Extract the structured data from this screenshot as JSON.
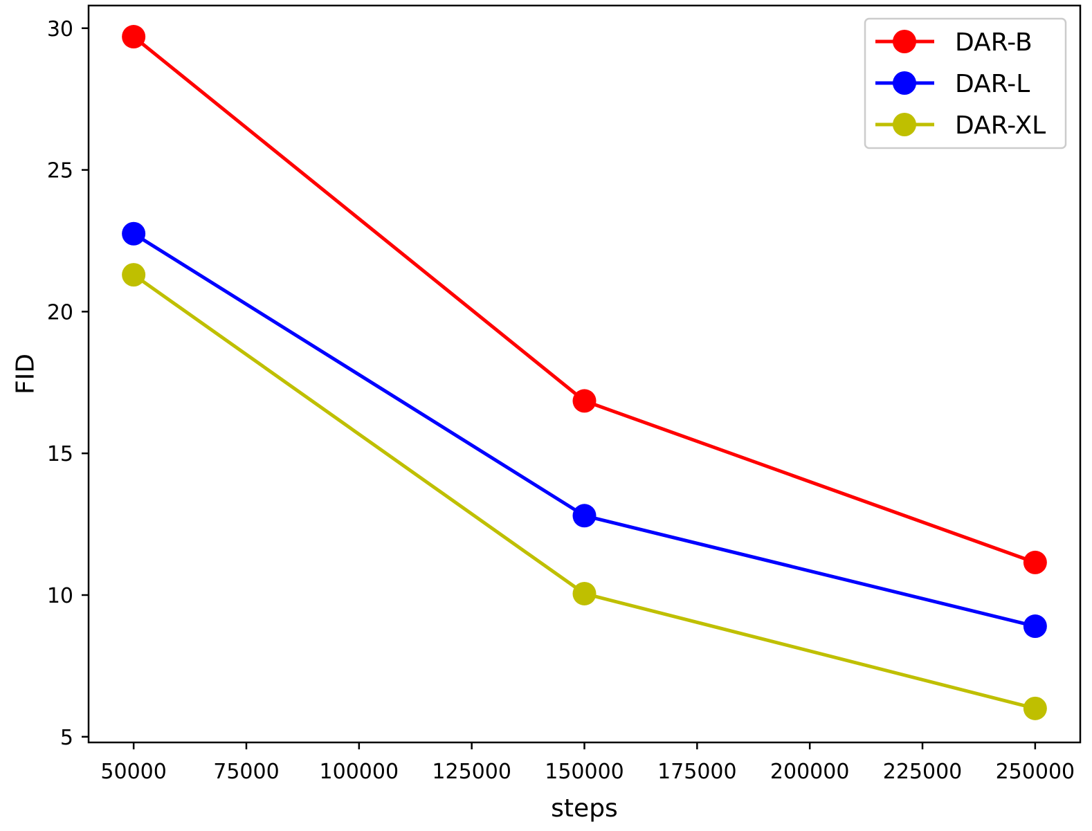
{
  "chart_data": {
    "type": "line",
    "xlabel": "steps",
    "ylabel": "FID",
    "x": [
      50000,
      150000,
      250000
    ],
    "xlim": [
      40000,
      260000
    ],
    "ylim": [
      4.8,
      30.8
    ],
    "xticks": [
      50000,
      75000,
      100000,
      125000,
      150000,
      175000,
      200000,
      225000,
      250000
    ],
    "yticks": [
      5,
      10,
      15,
      20,
      25,
      30
    ],
    "grid": false,
    "legend_position": "top-right",
    "series": [
      {
        "name": "DAR-B",
        "color": "#ff0000",
        "values": [
          29.7,
          16.85,
          11.15
        ]
      },
      {
        "name": "DAR-L",
        "color": "#0000ff",
        "values": [
          22.75,
          12.8,
          8.9
        ]
      },
      {
        "name": "DAR-XL",
        "color": "#bfbf00",
        "values": [
          21.3,
          10.05,
          6.0
        ]
      }
    ]
  }
}
